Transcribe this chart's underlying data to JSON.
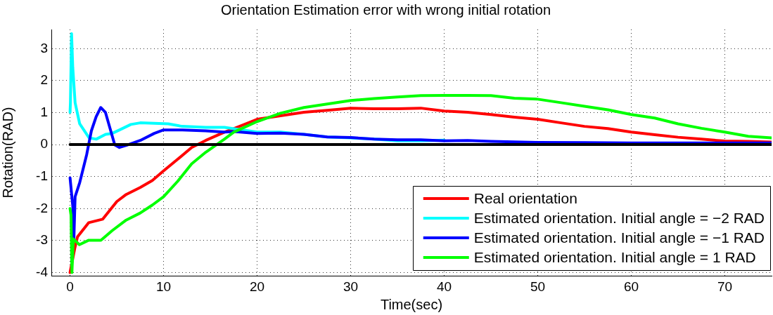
{
  "chart_data": {
    "type": "line",
    "title": "Orientation Estimation error with wrong initial rotation",
    "xlabel": "Time(sec)",
    "ylabel": "Rotation(RAD)",
    "xlim": [
      -2,
      75
    ],
    "ylim": [
      -4.1,
      3.6
    ],
    "xticks": [
      0,
      10,
      20,
      30,
      40,
      50,
      60,
      70
    ],
    "yticks": [
      -4,
      -3,
      -2,
      -1,
      0,
      1,
      2,
      3
    ],
    "grid": true,
    "legend": "bottom right",
    "series": [
      {
        "name": "Real orientation",
        "color": "#ff0000",
        "x": [
          0,
          0.5,
          0.8,
          2,
          3.5,
          5,
          6,
          7.5,
          8.8,
          10,
          11.5,
          13,
          14.5,
          16.5,
          17.5,
          20,
          22.5,
          25,
          27.5,
          30,
          32.5,
          35,
          37.5,
          40,
          42.5,
          45,
          47.5,
          50,
          52.5,
          55,
          57.5,
          60,
          62.5,
          65,
          67.5,
          70,
          72.5,
          75
        ],
        "values": [
          -4.0,
          -3.25,
          -2.88,
          -2.44,
          -2.33,
          -1.78,
          -1.56,
          -1.34,
          -1.12,
          -0.82,
          -0.46,
          -0.09,
          0.13,
          0.39,
          0.5,
          0.79,
          0.9,
          1.01,
          1.07,
          1.14,
          1.12,
          1.12,
          1.14,
          1.05,
          1.01,
          0.94,
          0.86,
          0.79,
          0.68,
          0.57,
          0.5,
          0.39,
          0.31,
          0.23,
          0.17,
          0.11,
          0.1,
          0.08
        ]
      },
      {
        "name": "Estimated orientation. Initial angle = −2 RAD",
        "color": "#00ffff",
        "x": [
          0,
          0.04,
          0.16,
          0.29,
          0.54,
          1.03,
          2.04,
          2.8,
          3.8,
          4.5,
          5.3,
          6.5,
          7.5,
          9.5,
          10.5,
          12,
          14.5,
          16.5,
          20,
          22.5,
          25,
          27.5,
          30,
          32.5,
          35,
          37.5,
          40
        ],
        "values": [
          1.01,
          1.31,
          3.47,
          2.41,
          1.31,
          0.65,
          0.21,
          0.17,
          0.32,
          0.35,
          0.46,
          0.63,
          0.68,
          0.66,
          0.65,
          0.57,
          0.54,
          0.54,
          0.39,
          0.39,
          0.32,
          0.24,
          0.21,
          0.17,
          0.12,
          0.12,
          0.14
        ]
      },
      {
        "name": "Estimated orientation. Initial angle = −1 RAD",
        "color": "#0000ff",
        "x": [
          0,
          0.1,
          0.29,
          0.41,
          0.54,
          1.03,
          1.78,
          2.28,
          2.79,
          3.28,
          3.78,
          4.28,
          4.78,
          5.28,
          6.03,
          7.5,
          9,
          10,
          12,
          14.5,
          16.5,
          17.5,
          20,
          22.5,
          25,
          27.5,
          30,
          32.5,
          35,
          37.5,
          40,
          42.5,
          45,
          50,
          55,
          60,
          65,
          70,
          75
        ],
        "values": [
          -1.04,
          -1.34,
          -1.92,
          -2.95,
          -1.63,
          -1.19,
          -0.31,
          0.43,
          0.87,
          1.16,
          1.01,
          0.5,
          -0.01,
          -0.09,
          -0.02,
          0.13,
          0.35,
          0.46,
          0.46,
          0.43,
          0.39,
          0.41,
          0.35,
          0.36,
          0.32,
          0.24,
          0.22,
          0.17,
          0.15,
          0.15,
          0.12,
          0.13,
          0.1,
          0.07,
          0.06,
          0.05,
          0.05,
          0.05,
          0.05
        ]
      },
      {
        "name": "Estimated orientation. Initial angle = 1 RAD",
        "color": "#00ff00",
        "x": [
          0,
          0.1,
          0.2,
          0.35,
          1,
          2,
          3.3,
          4.5,
          6,
          7.5,
          8.8,
          10,
          11.5,
          13,
          14.5,
          16.5,
          17.5,
          20,
          22.5,
          25,
          27.5,
          30,
          32.5,
          35,
          37.5,
          40,
          42.5,
          45,
          47.5,
          50,
          52.5,
          55,
          57.5,
          60,
          62.5,
          65,
          67.5,
          70,
          72.5,
          75
        ],
        "values": [
          -2.0,
          -2.2,
          -4.0,
          -2.95,
          -3.13,
          -2.99,
          -2.99,
          -2.69,
          -2.36,
          -2.14,
          -1.89,
          -1.63,
          -1.15,
          -0.6,
          -0.24,
          0.17,
          0.39,
          0.72,
          0.98,
          1.16,
          1.27,
          1.38,
          1.44,
          1.49,
          1.53,
          1.54,
          1.54,
          1.53,
          1.45,
          1.42,
          1.31,
          1.2,
          1.09,
          0.94,
          0.83,
          0.65,
          0.51,
          0.39,
          0.26,
          0.21
        ]
      },
      {
        "color": "#000000",
        "x": [
          0,
          75
        ],
        "values": [
          0,
          0
        ]
      }
    ]
  }
}
